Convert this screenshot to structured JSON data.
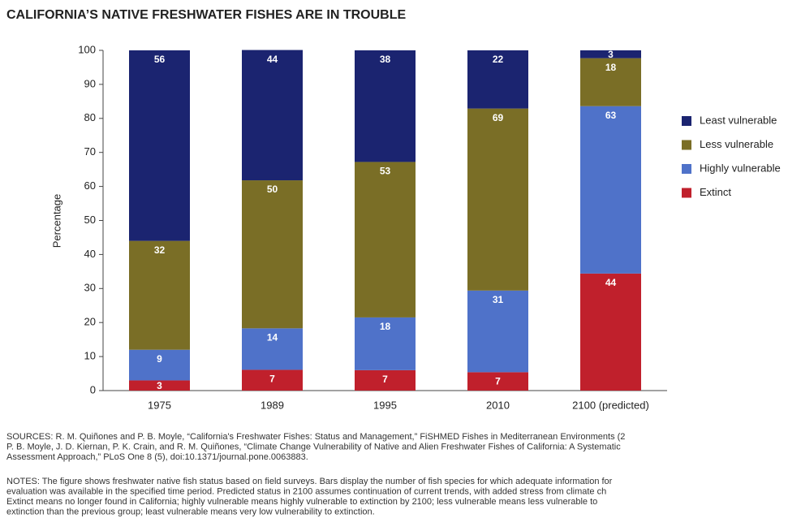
{
  "chart_data": {
    "type": "stacked-bar",
    "title": "CALIFORNIA’S NATIVE FRESHWATER FISHES ARE IN TROUBLE",
    "y_label": "Percentage",
    "categories": [
      "1975",
      "1989",
      "1995",
      "2010",
      "2100 (predicted)"
    ],
    "series": [
      {
        "name": "Extinct",
        "color": "#c0202c",
        "values": [
          3,
          6.1,
          6.0,
          5.4,
          34.4
        ],
        "value_labels": [
          "3",
          "7",
          "7",
          "7",
          "44"
        ]
      },
      {
        "name": "Highly vulnerable",
        "color": "#4f72c9",
        "values": [
          9,
          12.2,
          15.5,
          24.0,
          49.2
        ],
        "value_labels": [
          "9",
          "14",
          "18",
          "31",
          "63"
        ]
      },
      {
        "name": "Less vulnerable",
        "color": "#7a6e26",
        "values": [
          32,
          43.5,
          45.7,
          53.5,
          14.1
        ],
        "value_labels": [
          "32",
          "50",
          "53",
          "69",
          "18"
        ]
      },
      {
        "name": "Least vulnerable",
        "color": "#1b2470",
        "values": [
          56,
          38.3,
          32.8,
          17.1,
          2.3
        ],
        "value_labels": [
          "56",
          "44",
          "38",
          "22",
          "3"
        ]
      }
    ],
    "ylim": [
      0,
      100
    ],
    "yticks": [
      0,
      10,
      20,
      30,
      40,
      50,
      60,
      70,
      80,
      90,
      100
    ],
    "legend": "right",
    "sources": [
      "SOURCES: R. M. Quiñones and P. B. Moyle, “California's Freshwater Fishes: Status and Management,” FiSHMED Fishes in Mediterranean Environments (2",
      "P. B. Moyle, J. D. Kiernan, P. K. Crain, and R. M. Quiñones, “Climate Change Vulnerability of Native and Alien Freshwater Fishes of California: A Systematic",
      "Assessment Approach,” PLoS One 8 (5), doi:10.1371/journal.pone.0063883."
    ],
    "notes": [
      "NOTES: The figure shows freshwater native fish status based on field surveys. Bars display the number of fish species for which adequate information for",
      "evaluation was available in the specified time period. Predicted status in 2100 assumes continuation of current trends, with added stress from climate ch",
      "Extinct means no longer found in California; highly vulnerable means highly vulnerable to extinction by 2100; less vulnerable means less vulnerable to",
      "extinction than the previous group; least vulnerable means very low vulnerability to extinction."
    ]
  }
}
